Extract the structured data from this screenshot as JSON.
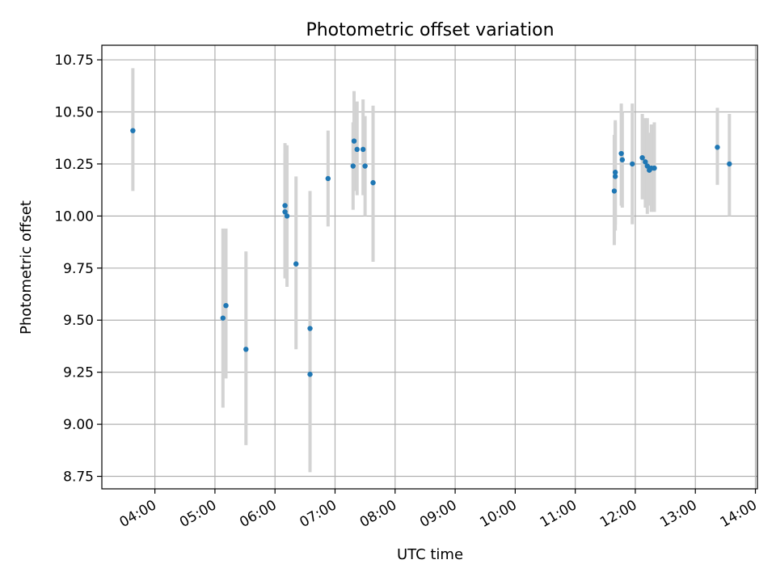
{
  "chart_data": {
    "type": "scatter",
    "title": "Photometric offset variation",
    "xlabel": "UTC time",
    "ylabel": "Photometric offset",
    "xlim": [
      "03:07",
      "14:02"
    ],
    "ylim": [
      8.69,
      10.82
    ],
    "x_ticks": [
      "04:00",
      "05:00",
      "06:00",
      "07:00",
      "08:00",
      "09:00",
      "10:00",
      "11:00",
      "12:00",
      "13:00",
      "14:00"
    ],
    "y_ticks": [
      8.75,
      9.0,
      9.25,
      9.5,
      9.75,
      10.0,
      10.25,
      10.5,
      10.75
    ],
    "y_tick_labels": [
      "8.75",
      "9.00",
      "9.25",
      "9.50",
      "9.75",
      "10.00",
      "10.25",
      "10.50",
      "10.75"
    ],
    "grid": true,
    "colors": {
      "marker": "#1f77b4",
      "errorbar": "#d3d3d3",
      "grid": "#b0b0b0"
    },
    "series": [
      {
        "points": [
          {
            "x": "03:38",
            "y": 10.41,
            "lo": 10.12,
            "hi": 10.71
          },
          {
            "x": "05:08",
            "y": 9.51,
            "lo": 9.08,
            "hi": 9.94
          },
          {
            "x": "05:11",
            "y": 9.57,
            "lo": 9.22,
            "hi": 9.94
          },
          {
            "x": "05:31",
            "y": 9.36,
            "lo": 8.9,
            "hi": 9.83
          },
          {
            "x": "06:10",
            "y": 10.02,
            "lo": 9.7,
            "hi": 10.3
          },
          {
            "x": "06:10",
            "y": 10.05,
            "lo": 9.75,
            "hi": 10.35
          },
          {
            "x": "06:12",
            "y": 10.0,
            "lo": 9.66,
            "hi": 10.34
          },
          {
            "x": "06:21",
            "y": 9.77,
            "lo": 9.36,
            "hi": 10.19
          },
          {
            "x": "06:35",
            "y": 9.46,
            "lo": 8.81,
            "hi": 10.12
          },
          {
            "x": "06:35",
            "y": 9.24,
            "lo": 8.77,
            "hi": 9.71
          },
          {
            "x": "06:53",
            "y": 10.18,
            "lo": 9.95,
            "hi": 10.41
          },
          {
            "x": "07:18",
            "y": 10.24,
            "lo": 10.03,
            "hi": 10.45
          },
          {
            "x": "07:19",
            "y": 10.36,
            "lo": 10.12,
            "hi": 10.6
          },
          {
            "x": "07:22",
            "y": 10.32,
            "lo": 10.1,
            "hi": 10.55
          },
          {
            "x": "07:28",
            "y": 10.32,
            "lo": 10.1,
            "hi": 10.56
          },
          {
            "x": "07:30",
            "y": 10.24,
            "lo": 10.0,
            "hi": 10.48
          },
          {
            "x": "07:38",
            "y": 10.16,
            "lo": 9.78,
            "hi": 10.53
          },
          {
            "x": "11:39",
            "y": 10.12,
            "lo": 9.86,
            "hi": 10.39
          },
          {
            "x": "11:40",
            "y": 10.19,
            "lo": 9.93,
            "hi": 10.45
          },
          {
            "x": "11:40",
            "y": 10.21,
            "lo": 9.96,
            "hi": 10.46
          },
          {
            "x": "11:46",
            "y": 10.3,
            "lo": 10.05,
            "hi": 10.54
          },
          {
            "x": "11:47",
            "y": 10.27,
            "lo": 10.04,
            "hi": 10.5
          },
          {
            "x": "11:57",
            "y": 10.25,
            "lo": 9.96,
            "hi": 10.54
          },
          {
            "x": "12:07",
            "y": 10.28,
            "lo": 10.08,
            "hi": 10.49
          },
          {
            "x": "12:10",
            "y": 10.26,
            "lo": 10.04,
            "hi": 10.47
          },
          {
            "x": "12:12",
            "y": 10.24,
            "lo": 10.01,
            "hi": 10.47
          },
          {
            "x": "12:14",
            "y": 10.22,
            "lo": 10.05,
            "hi": 10.4
          },
          {
            "x": "12:16",
            "y": 10.23,
            "lo": 10.02,
            "hi": 10.44
          },
          {
            "x": "12:19",
            "y": 10.23,
            "lo": 10.02,
            "hi": 10.45
          },
          {
            "x": "13:22",
            "y": 10.33,
            "lo": 10.15,
            "hi": 10.52
          },
          {
            "x": "13:34",
            "y": 10.25,
            "lo": 10.0,
            "hi": 10.49
          }
        ]
      }
    ]
  }
}
